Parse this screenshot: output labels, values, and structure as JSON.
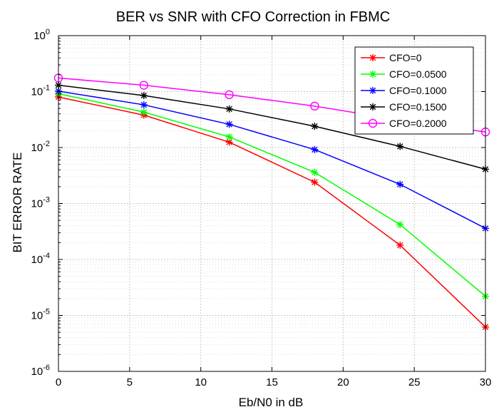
{
  "chart_data": {
    "type": "line",
    "title": "BER vs SNR with CFO Correction in FBMC",
    "xlabel": "Eb/N0 in dB",
    "ylabel": "BIT ERROR RATE",
    "xlim": [
      0,
      30
    ],
    "ylim": [
      1e-06,
      1
    ],
    "yscale": "log",
    "grid": true,
    "legend_position": "top-right",
    "x_ticks": [
      {
        "value": 0,
        "label": "0"
      },
      {
        "value": 5,
        "label": "5"
      },
      {
        "value": 10,
        "label": "10"
      },
      {
        "value": 15,
        "label": "15"
      },
      {
        "value": 20,
        "label": "20"
      },
      {
        "value": 25,
        "label": "25"
      },
      {
        "value": 30,
        "label": "30"
      }
    ],
    "y_ticks": [
      {
        "value": 1,
        "base": "10",
        "exp": "0"
      },
      {
        "value": 0.1,
        "base": "10",
        "exp": "-1"
      },
      {
        "value": 0.01,
        "base": "10",
        "exp": "-2"
      },
      {
        "value": 0.001,
        "base": "10",
        "exp": "-3"
      },
      {
        "value": 0.0001,
        "base": "10",
        "exp": "-4"
      },
      {
        "value": 1e-05,
        "base": "10",
        "exp": "-5"
      },
      {
        "value": 1e-06,
        "base": "10",
        "exp": "-6"
      }
    ],
    "x": [
      0,
      6,
      12,
      18,
      24,
      30
    ],
    "series": [
      {
        "name": "CFO=0",
        "color": "#ff0000",
        "marker": "star",
        "values": [
          0.08,
          0.038,
          0.0125,
          0.0024,
          0.00018,
          6.2e-06
        ]
      },
      {
        "name": "CFO=0.0500",
        "color": "#00ff00",
        "marker": "star",
        "values": [
          0.092,
          0.043,
          0.0155,
          0.0036,
          0.00042,
          2.2e-05
        ]
      },
      {
        "name": "CFO=0.1000",
        "color": "#0000ff",
        "marker": "star",
        "values": [
          0.102,
          0.058,
          0.026,
          0.0092,
          0.0022,
          0.00036
        ]
      },
      {
        "name": "CFO=0.1500",
        "color": "#000000",
        "marker": "star",
        "values": [
          0.13,
          0.085,
          0.049,
          0.024,
          0.0105,
          0.0041
        ]
      },
      {
        "name": "CFO=0.2000",
        "color": "#ff00ff",
        "marker": "circle",
        "values": [
          0.175,
          0.13,
          0.088,
          0.055,
          0.031,
          0.019
        ]
      }
    ]
  }
}
